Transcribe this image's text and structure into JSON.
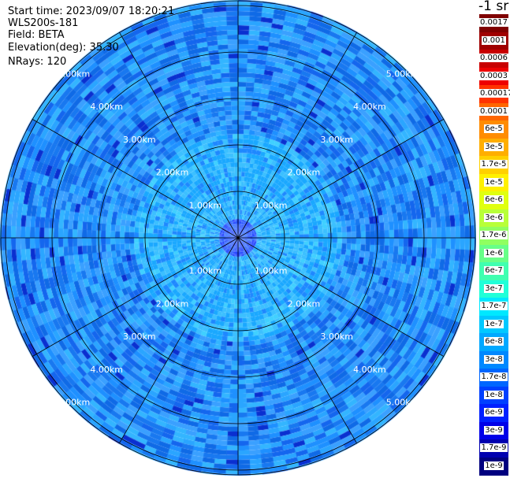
{
  "info": {
    "start_time": "Start time: 2023/09/07 18:20:21",
    "instrument": "WLS200s-181",
    "field": "Field: BETA",
    "elevation": "Elevation(deg): 35.30",
    "nrays": "NRays: 120"
  },
  "colorbar": {
    "title": "-1 sr",
    "labels": [
      "0.0017",
      "0.001",
      "0.0006",
      "0.0003",
      "0.00017",
      "0.0001",
      "6e-5",
      "3e-5",
      "1.7e-5",
      "1e-5",
      "6e-6",
      "3e-6",
      "1.7e-6",
      "1e-6",
      "6e-7",
      "3e-7",
      "1.7e-7",
      "1e-7",
      "6e-8",
      "3e-8",
      "1.7e-8",
      "1e-8",
      "6e-9",
      "3e-9",
      "1.7e-9",
      "1e-9"
    ],
    "colors": [
      "#7f0000",
      "#a00000",
      "#c80000",
      "#ee0000",
      "#ff3300",
      "#ff6600",
      "#ff8c00",
      "#ffae00",
      "#ffd000",
      "#fff000",
      "#e0ff10",
      "#b8ff38",
      "#90ff60",
      "#68ff88",
      "#40ffb0",
      "#20ffd8",
      "#00e8ff",
      "#00c8ff",
      "#00a8ff",
      "#0088ff",
      "#0066ff",
      "#0040ff",
      "#0020ff",
      "#0000e8",
      "#0000b0",
      "#00007f"
    ]
  },
  "rings": [
    "1.00km",
    "2.00km",
    "3.00km",
    "4.00km",
    "5.00km"
  ],
  "ppi": {
    "nrays": 120,
    "spokes": 12,
    "palette": [
      "#1e90ff",
      "#1878f0",
      "#2aa5ff",
      "#0f6ae6",
      "#33b5ff",
      "#1466ee",
      "#3aa0ff"
    ]
  }
}
